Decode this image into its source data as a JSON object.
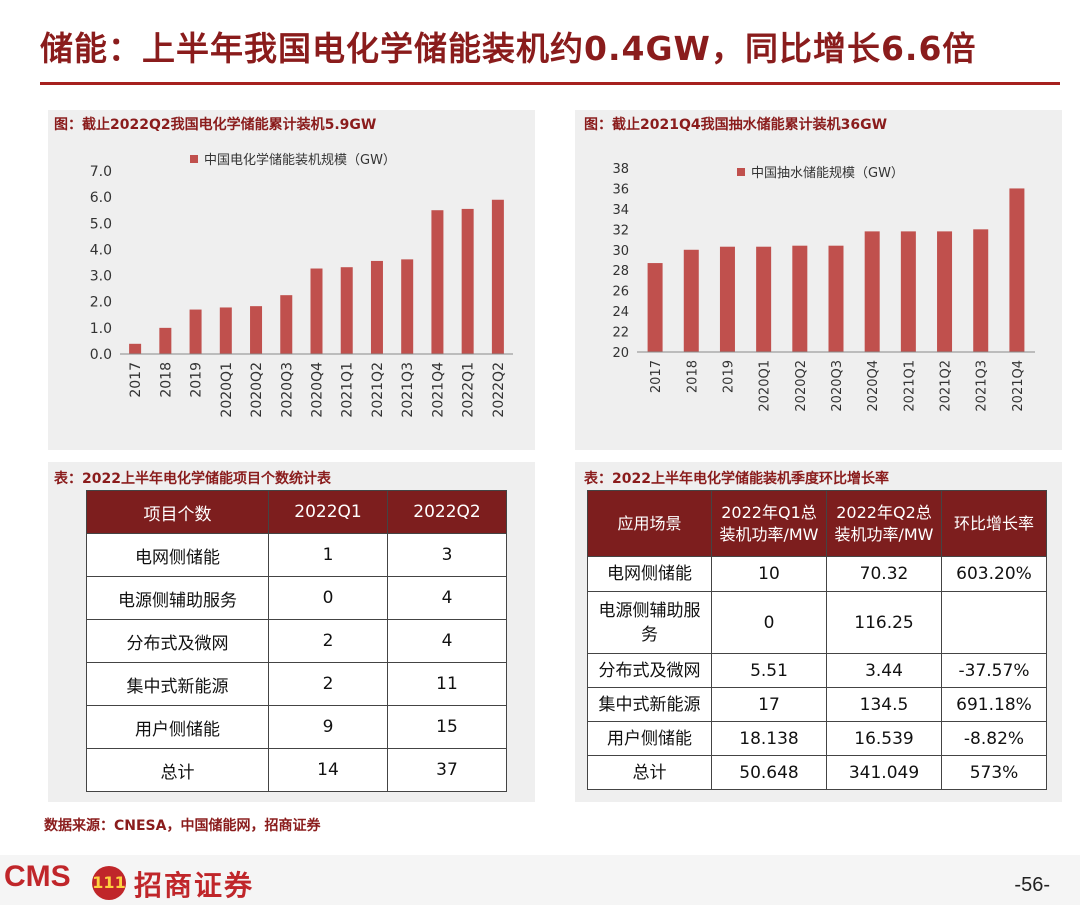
{
  "title": "储能：上半年我国电化学储能装机约0.4GW，同比增长6.6倍",
  "chart1_caption": "图：截止2022Q2我国电化学储能累计装机5.9GW",
  "chart2_caption": "图：截止2021Q4我国抽水储能累计装机36GW",
  "table1_caption": "表：2022上半年电化学储能项目个数统计表",
  "table2_caption": "表：2022上半年电化学储能装机季度环比增长率",
  "chart_data": [
    {
      "type": "bar",
      "categories": [
        "2017",
        "2018",
        "2019",
        "2020Q1",
        "2020Q2",
        "2020Q3",
        "2020Q4",
        "2021Q1",
        "2021Q2",
        "2021Q3",
        "2021Q4",
        "2022Q1",
        "2022Q2"
      ],
      "series": [
        {
          "name": "中国电化学储能装机规模（GW）",
          "values": [
            0.39,
            1.0,
            1.7,
            1.78,
            1.83,
            2.25,
            3.27,
            3.32,
            3.56,
            3.62,
            5.5,
            5.55,
            5.9
          ]
        }
      ],
      "yticks": [
        "0.0",
        "1.0",
        "2.0",
        "3.0",
        "4.0",
        "5.0",
        "6.0",
        "7.0"
      ],
      "ylim": [
        0,
        7
      ],
      "color": "#c0504d",
      "legend": "top"
    },
    {
      "type": "bar",
      "categories": [
        "2017",
        "2018",
        "2019",
        "2020Q1",
        "2020Q2",
        "2020Q3",
        "2020Q4",
        "2021Q1",
        "2021Q2",
        "2021Q3",
        "2021Q4"
      ],
      "series": [
        {
          "name": "中国抽水储能规模（GW）",
          "values": [
            28.7,
            30.0,
            30.3,
            30.3,
            30.4,
            30.4,
            31.8,
            31.8,
            31.8,
            32.0,
            36.0
          ]
        }
      ],
      "yticks": [
        "20",
        "22",
        "24",
        "26",
        "28",
        "30",
        "32",
        "34",
        "36",
        "38"
      ],
      "ylim": [
        20,
        38
      ],
      "color": "#c0504d",
      "legend": "top"
    }
  ],
  "table1": {
    "headers": [
      "项目个数",
      "2022Q1",
      "2022Q2"
    ],
    "rows": [
      [
        "电网侧储能",
        "1",
        "3"
      ],
      [
        "电源侧辅助服务",
        "0",
        "4"
      ],
      [
        "分布式及微网",
        "2",
        "4"
      ],
      [
        "集中式新能源",
        "2",
        "11"
      ],
      [
        "用户侧储能",
        "9",
        "15"
      ],
      [
        "总计",
        "14",
        "37"
      ]
    ]
  },
  "table2": {
    "headers": [
      "应用场景",
      "2022年Q1总装机功率/MW",
      "2022年Q2总装机功率/MW",
      "环比增长率"
    ],
    "rows": [
      [
        "电网侧储能",
        "10",
        "70.32",
        "603.20%"
      ],
      [
        "电源侧辅助服务",
        "0",
        "116.25",
        ""
      ],
      [
        "分布式及微网",
        "5.51",
        "3.44",
        "-37.57%"
      ],
      [
        "集中式新能源",
        "17",
        "134.5",
        "691.18%"
      ],
      [
        "用户侧储能",
        "18.138",
        "16.539",
        "-8.82%"
      ],
      [
        "总计",
        "50.648",
        "341.049",
        "573%"
      ]
    ]
  },
  "source": "数据来源：CNESA，中国储能网，招商证券",
  "logo": {
    "cms": "CMS",
    "seal": "111",
    "name": "招商证券"
  },
  "page_number": "-56-"
}
